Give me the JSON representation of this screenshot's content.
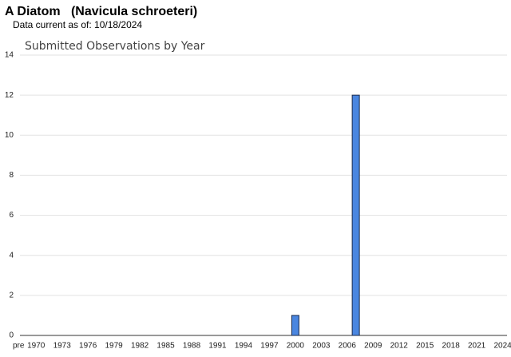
{
  "chart_data": {
    "type": "bar",
    "title": "A Diatom   (Navicula schroeteri)",
    "subtitle": "Data current as of: 10/18/2024",
    "chart_title": "Submitted Observations by Year",
    "categories": [
      "pre",
      "1970",
      null,
      null,
      "1973",
      null,
      null,
      "1976",
      null,
      null,
      "1979",
      null,
      null,
      "1982",
      null,
      null,
      "1985",
      null,
      null,
      "1988",
      null,
      null,
      "1991",
      null,
      null,
      "1994",
      null,
      null,
      "1997",
      null,
      null,
      "2000",
      null,
      null,
      "2003",
      null,
      null,
      "2006",
      null,
      null,
      "2009",
      null,
      null,
      "2012",
      null,
      null,
      "2015",
      null,
      null,
      "2018",
      null,
      null,
      "2021",
      null,
      null,
      "2024"
    ],
    "values": [
      0,
      0,
      0,
      0,
      0,
      0,
      0,
      0,
      0,
      0,
      0,
      0,
      0,
      0,
      0,
      0,
      0,
      0,
      0,
      0,
      0,
      0,
      0,
      0,
      0,
      0,
      0,
      0,
      0,
      0,
      0,
      1,
      0,
      0,
      0,
      0,
      0,
      0,
      12,
      0,
      0,
      0,
      0,
      0,
      0,
      0,
      0,
      0,
      0,
      0,
      0,
      0,
      0,
      0,
      0,
      0
    ],
    "color": "#4a86e0",
    "ylim": [
      0,
      14
    ],
    "yticks": [
      0,
      2,
      4,
      6,
      8,
      10,
      12,
      14
    ],
    "grid": true
  }
}
